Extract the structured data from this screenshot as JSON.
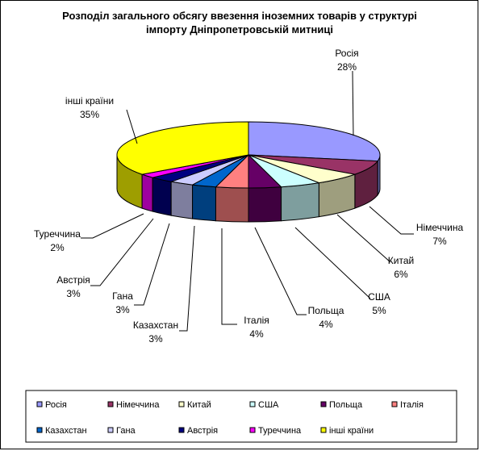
{
  "chart_data": {
    "type": "pie",
    "title_lines": [
      "Розподіл загального обсягу ввезення іноземних  товарів у структурі",
      "імпорту Дніпропетровській митниці"
    ],
    "slices": [
      {
        "name": "Росія",
        "value": 28,
        "label": "28%",
        "color": "#9999FF"
      },
      {
        "name": "Німеччина",
        "value": 7,
        "label": "7%",
        "color": "#993366"
      },
      {
        "name": "Китай",
        "value": 6,
        "label": "6%",
        "color": "#FFFFCC"
      },
      {
        "name": "США",
        "value": 5,
        "label": "5%",
        "color": "#CCFFFF"
      },
      {
        "name": "Польща",
        "value": 4,
        "label": "4%",
        "color": "#660066"
      },
      {
        "name": "Італія",
        "value": 4,
        "label": "4%",
        "color": "#FF8080"
      },
      {
        "name": "Казахстан",
        "value": 3,
        "label": "3%",
        "color": "#0066CC"
      },
      {
        "name": "Гана",
        "value": 3,
        "label": "3%",
        "color": "#CCCCFF"
      },
      {
        "name": "Австрія",
        "value": 3,
        "label": "3%",
        "color": "#000080"
      },
      {
        "name": "Туреччина",
        "value": 2,
        "label": "2%",
        "color": "#FF00FF"
      },
      {
        "name": "інші країни",
        "value": 35,
        "label": "35%",
        "color": "#FFFF00"
      }
    ],
    "legend_position": "bottom"
  }
}
